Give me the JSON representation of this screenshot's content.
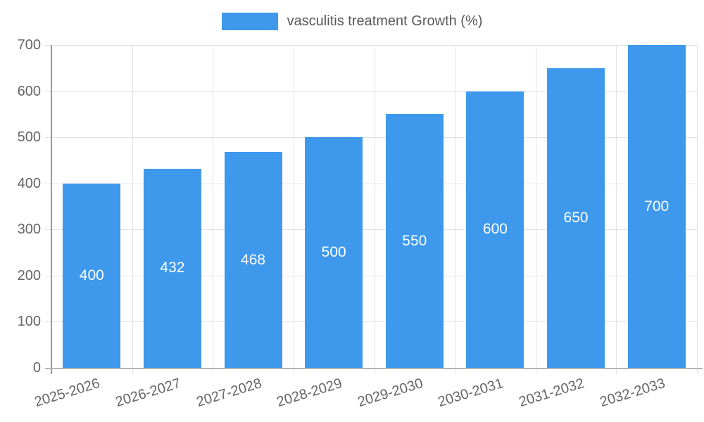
{
  "chart_data": {
    "type": "bar",
    "title": "vasculitis treatment Growth (%)",
    "categories": [
      "2025-2026",
      "2026-2027",
      "2027-2028",
      "2028-2029",
      "2029-2030",
      "2030-2031",
      "2031-2032",
      "2032-2033"
    ],
    "values": [
      400,
      432,
      468,
      500,
      550,
      600,
      650,
      700
    ],
    "xlabel": "",
    "ylabel": "",
    "ylim": [
      0,
      700
    ],
    "ytick_step": 100,
    "yticks": [
      0,
      100,
      200,
      300,
      400,
      500,
      600,
      700
    ],
    "grid": true,
    "legend_position": "top",
    "bar_labels": [
      "400",
      "432",
      "468",
      "500",
      "550",
      "600",
      "650",
      "700"
    ]
  },
  "legend": {
    "label": "vasculitis treatment Growth (%)"
  },
  "colors": {
    "bar": "#3e99ed",
    "bar_label_text": "#ffffff",
    "axis_text": "#666666",
    "grid_line": "#e3e3e3",
    "y_axis_line": "#999999",
    "x_axis_line": "#b5b5b5"
  }
}
